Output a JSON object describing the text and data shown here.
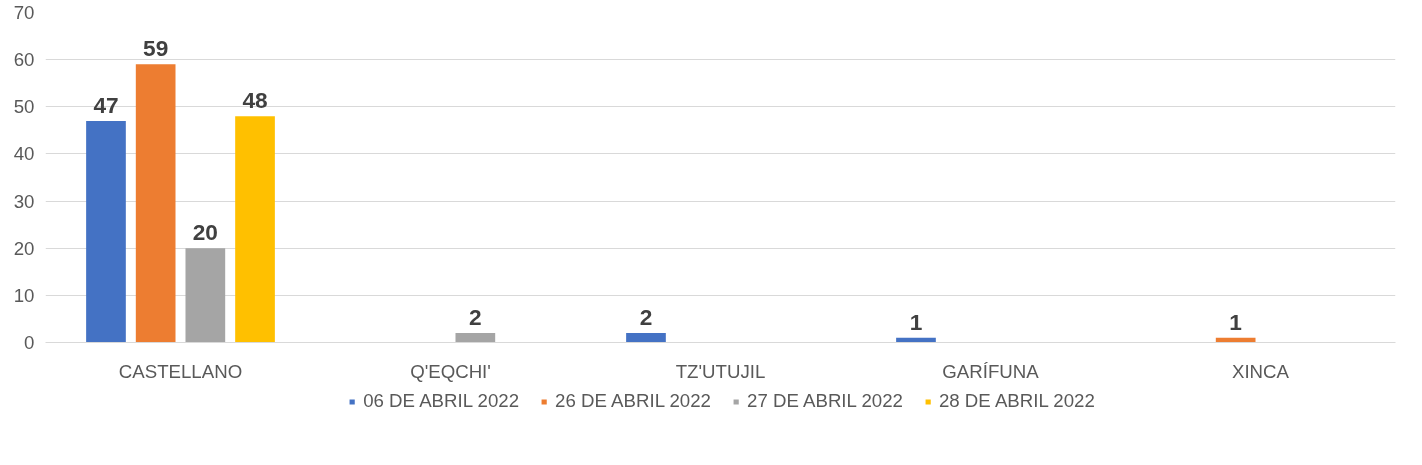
{
  "chart_data": {
    "type": "bar",
    "categories": [
      "CASTELLANO",
      "Q'EQCHI'",
      "TZ'UTUJIL",
      "GARÍFUNA",
      "XINCA"
    ],
    "series": [
      {
        "name": "06 DE ABRIL 2022",
        "color": "#4472c4",
        "values": [
          47,
          0,
          2,
          1,
          0
        ],
        "value_labels": [
          "47",
          null,
          "2",
          "1",
          null
        ]
      },
      {
        "name": "26 DE ABRIL 2022",
        "color": "#ed7d31",
        "values": [
          59,
          0,
          0,
          0,
          1
        ],
        "value_labels": [
          "59",
          null,
          null,
          null,
          "1"
        ]
      },
      {
        "name": "27 DE ABRIL 2022",
        "color": "#a5a5a5",
        "values": [
          20,
          2,
          0,
          0,
          0
        ],
        "value_labels": [
          "20",
          "2",
          null,
          null,
          null
        ]
      },
      {
        "name": "28 DE ABRIL 2022",
        "color": "#ffc000",
        "values": [
          48,
          0,
          0,
          0,
          0
        ],
        "value_labels": [
          "48",
          null,
          null,
          null,
          null
        ]
      }
    ],
    "ylim": [
      0,
      70
    ],
    "yticks": [
      0,
      10,
      20,
      30,
      40,
      50,
      60,
      70
    ],
    "grid": "y",
    "legend": "bottom"
  }
}
